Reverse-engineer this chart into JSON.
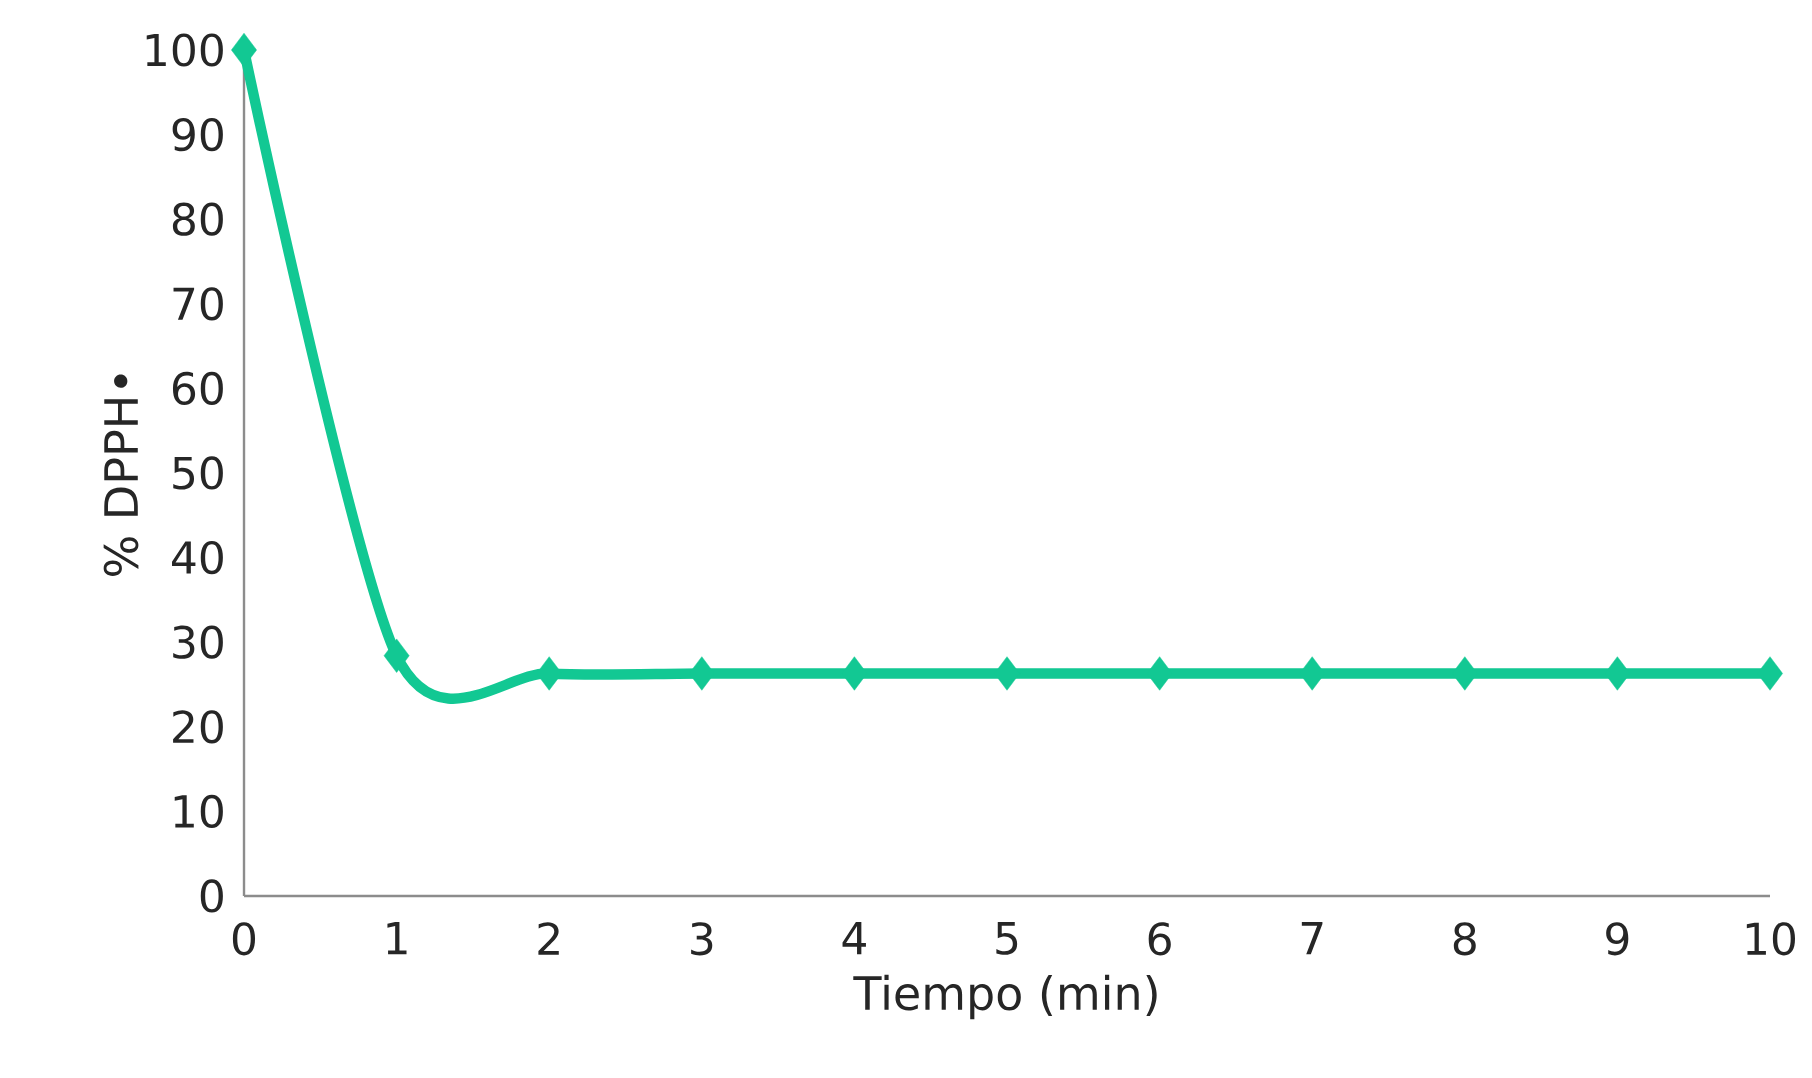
{
  "chart_data": {
    "type": "line",
    "xlabel": "Tiempo (min)",
    "ylabel": "% DPPH•",
    "x": [
      0,
      1,
      2,
      3,
      4,
      5,
      6,
      7,
      8,
      9,
      10
    ],
    "series": [
      {
        "color": "#12c893",
        "values": [
          100,
          28.4,
          26.3,
          26.3,
          26.3,
          26.3,
          26.3,
          26.3,
          26.3,
          26.3,
          26.3
        ]
      }
    ],
    "marker": "diamond",
    "line_style": "solid",
    "xlim": [
      0,
      10
    ],
    "xticks": [
      0,
      1,
      2,
      3,
      4,
      5,
      6,
      7,
      8,
      9,
      10
    ],
    "ylim": [
      0,
      100
    ],
    "yticks": [
      0,
      10,
      20,
      30,
      40,
      50,
      60,
      70,
      80,
      90,
      100
    ]
  }
}
